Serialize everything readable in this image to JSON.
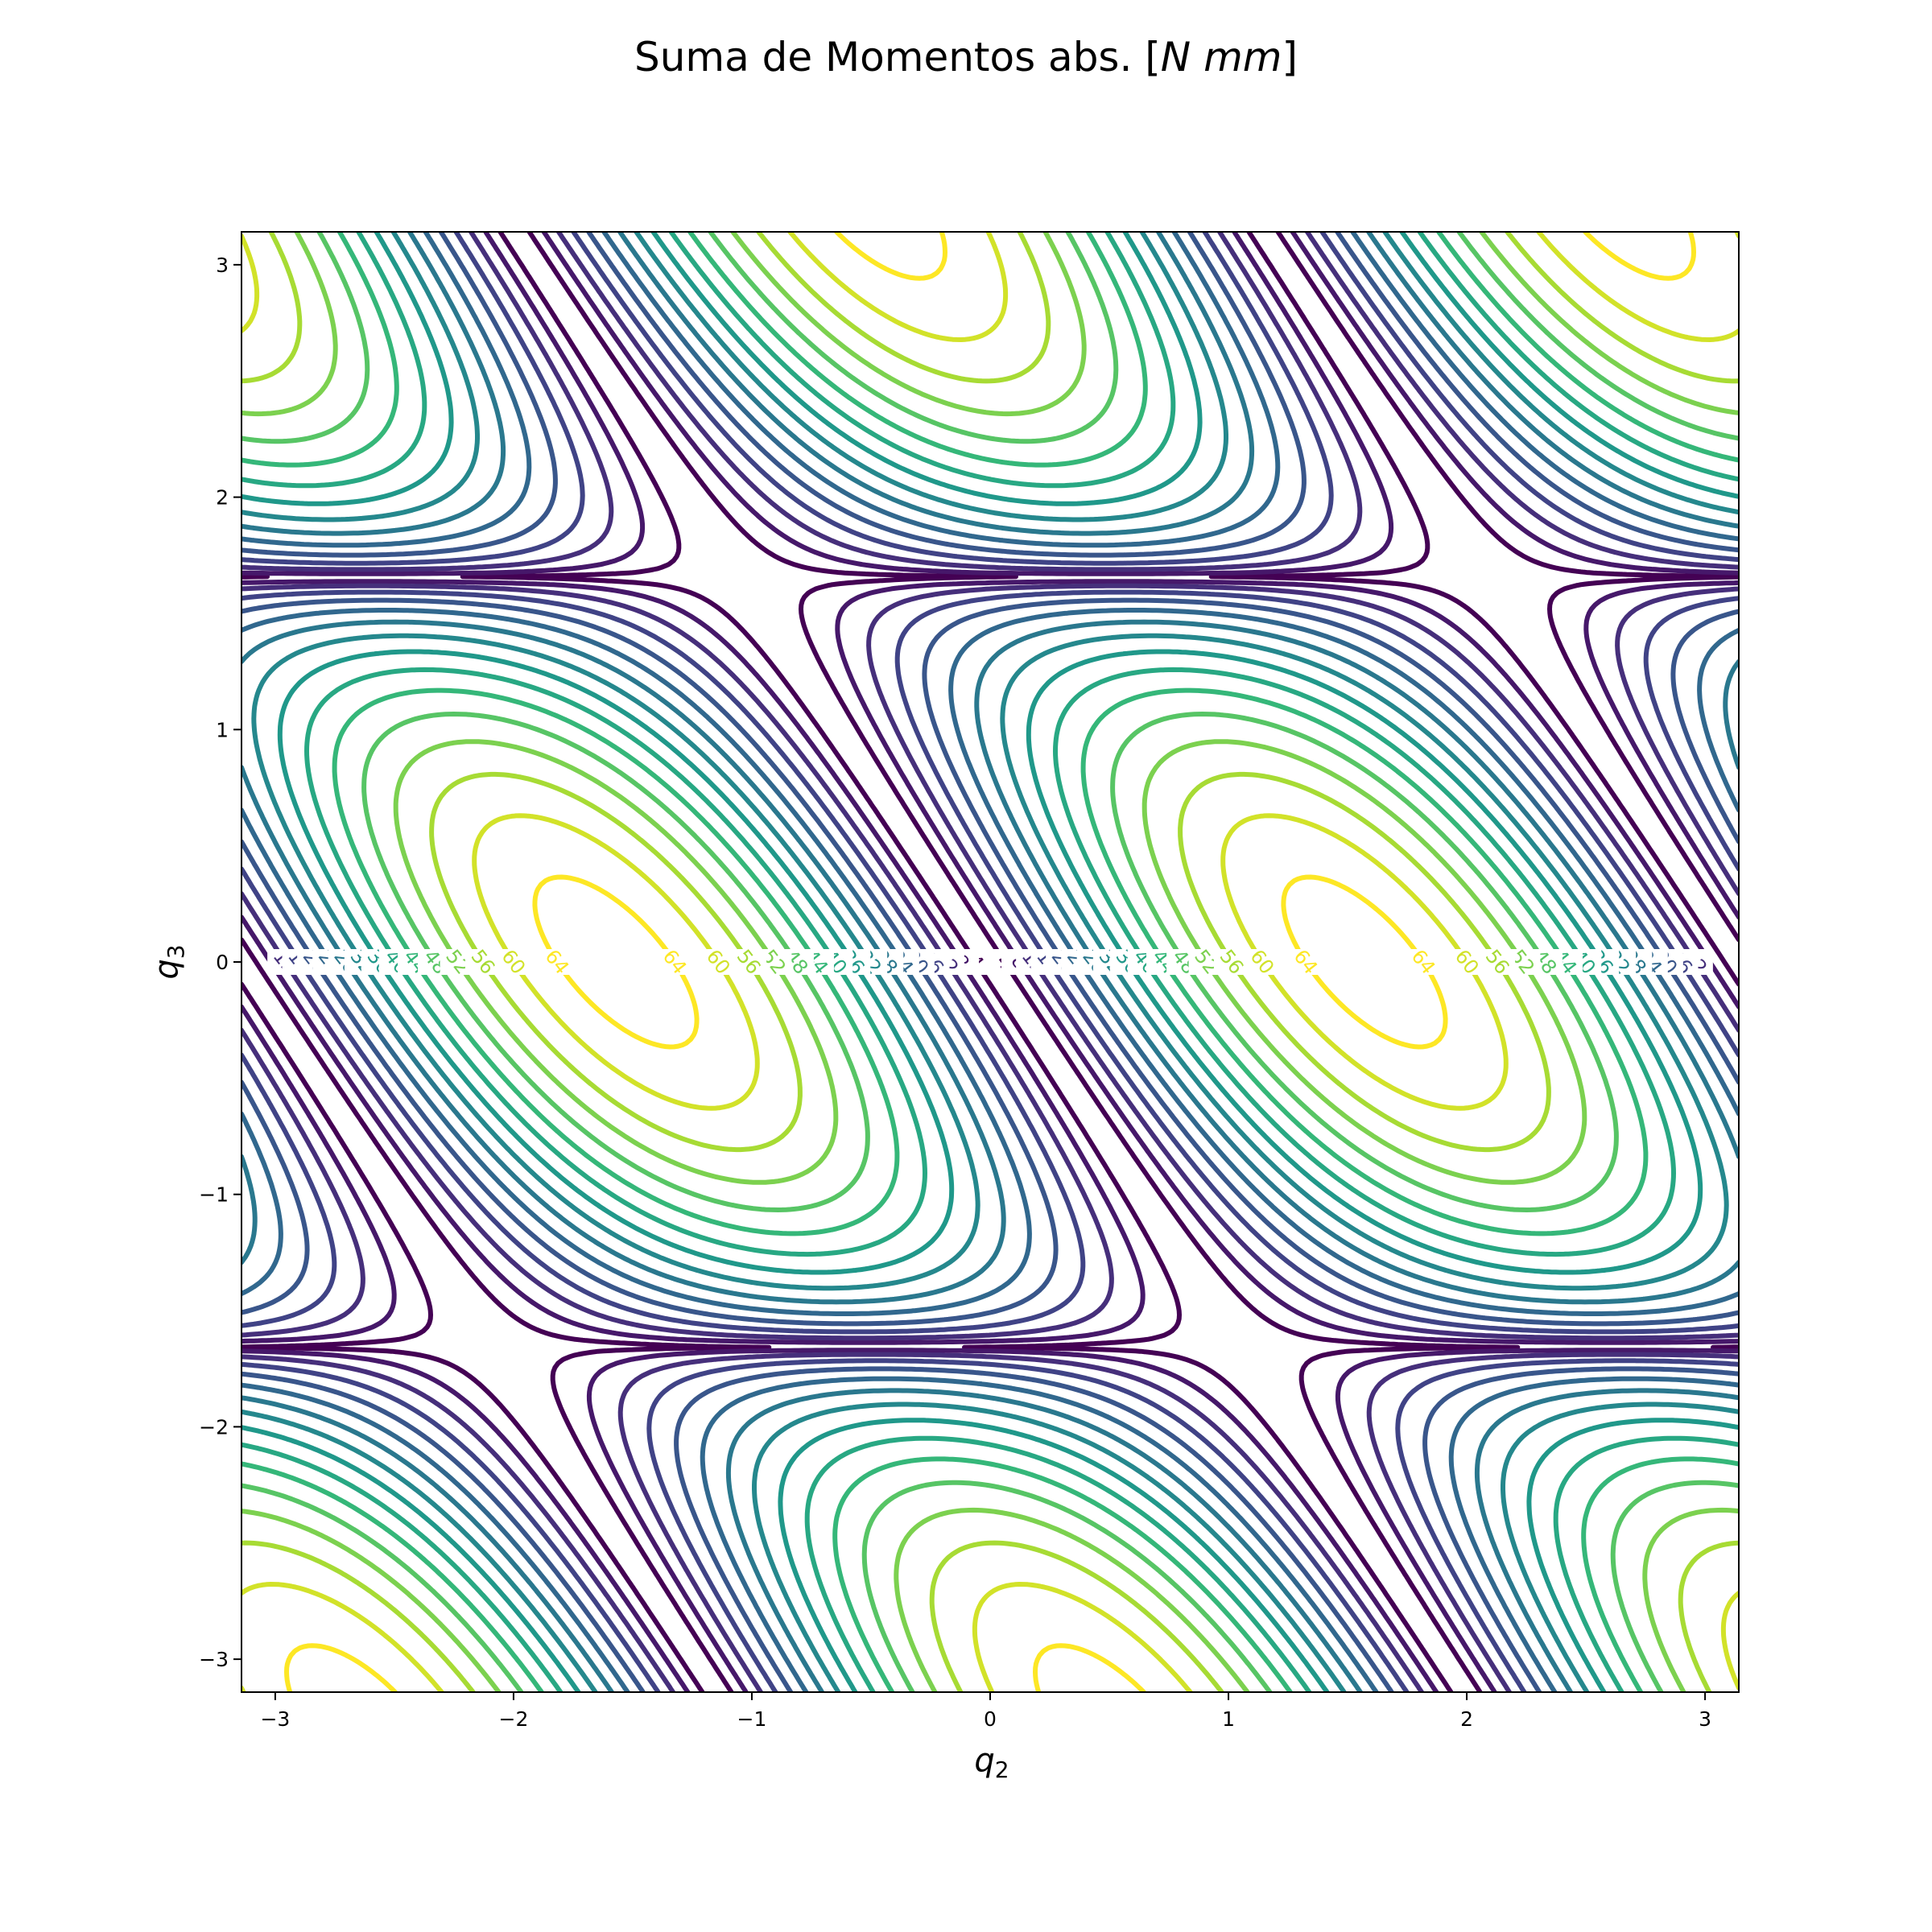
{
  "chart_data": {
    "type": "contour",
    "title_main": "Suma de Momentos abs. [",
    "title_units": "N mm",
    "title_end": "]",
    "xlabel_var": "q",
    "xlabel_sub": "2",
    "ylabel_var": "q",
    "ylabel_sub": "3",
    "xlim": [
      -3.1416,
      3.1416
    ],
    "ylim": [
      -3.1416,
      3.1416
    ],
    "x_ticks": [
      -3,
      -2,
      -1,
      0,
      1,
      2,
      3
    ],
    "x_tick_labels": [
      "−3",
      "−2",
      "−1",
      "0",
      "1",
      "2",
      "3"
    ],
    "y_ticks": [
      -3,
      -2,
      -1,
      0,
      1,
      2,
      3
    ],
    "y_tick_labels": [
      "−3",
      "−2",
      "−1",
      "0",
      "1",
      "2",
      "3"
    ],
    "levels": [
      4,
      8,
      12,
      16,
      20,
      24,
      28,
      32,
      36,
      40,
      44,
      48,
      52,
      56,
      60,
      64
    ],
    "level_labels": [
      "4",
      "8",
      "12",
      "16",
      "20",
      "24",
      "28",
      "32",
      "36",
      "40",
      "44",
      "48",
      "52",
      "56",
      "60",
      "64"
    ],
    "colormap": "viridis",
    "grid": false,
    "legend": "none"
  }
}
